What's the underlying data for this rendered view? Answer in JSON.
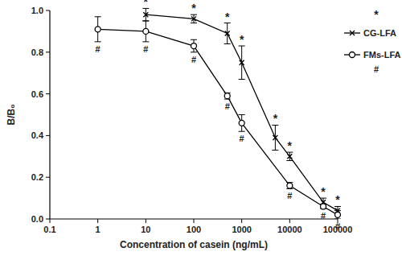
{
  "chart_data": {
    "type": "line",
    "x_label": "Concentration of casein (ng/mL)",
    "y_label": "B/B₀",
    "log": "x",
    "grid": false,
    "legend": "top-right",
    "xlim": [
      0.1,
      100000
    ],
    "xticks": [
      0.1,
      1,
      10,
      100,
      1000,
      10000,
      100000
    ],
    "ylim": [
      0,
      1
    ],
    "yticks": [
      {
        "value": 0,
        "label": "0.0"
      },
      0.2,
      0.4,
      0.6,
      0.8,
      {
        "value": 1,
        "label": "1.0"
      }
    ],
    "series": [
      {
        "name": "CG-LFA",
        "color": "#000000",
        "marker": "cross",
        "line_style": "solid",
        "annotation": "*",
        "x": [
          10,
          100,
          500,
          1000,
          5000,
          10000,
          50000,
          100000
        ],
        "values": [
          0.98,
          0.96,
          0.89,
          0.75,
          0.39,
          0.3,
          0.08,
          0.04
        ],
        "errors": [
          0.03,
          0.02,
          0.05,
          0.08,
          0.06,
          0.02,
          0.02,
          0.02
        ]
      },
      {
        "name": "FMs-LFA",
        "color": "#000000",
        "marker": "circle",
        "line_style": "solid",
        "annotation": "#",
        "x": [
          1,
          10,
          100,
          500,
          1000,
          10000,
          50000,
          100000
        ],
        "values": [
          0.91,
          0.9,
          0.83,
          0.59,
          0.46,
          0.16,
          0.06,
          0.02
        ],
        "errors": [
          0.06,
          0.05,
          0.03,
          0.015,
          0.04,
          0.015,
          0.01,
          0.02
        ]
      }
    ]
  }
}
